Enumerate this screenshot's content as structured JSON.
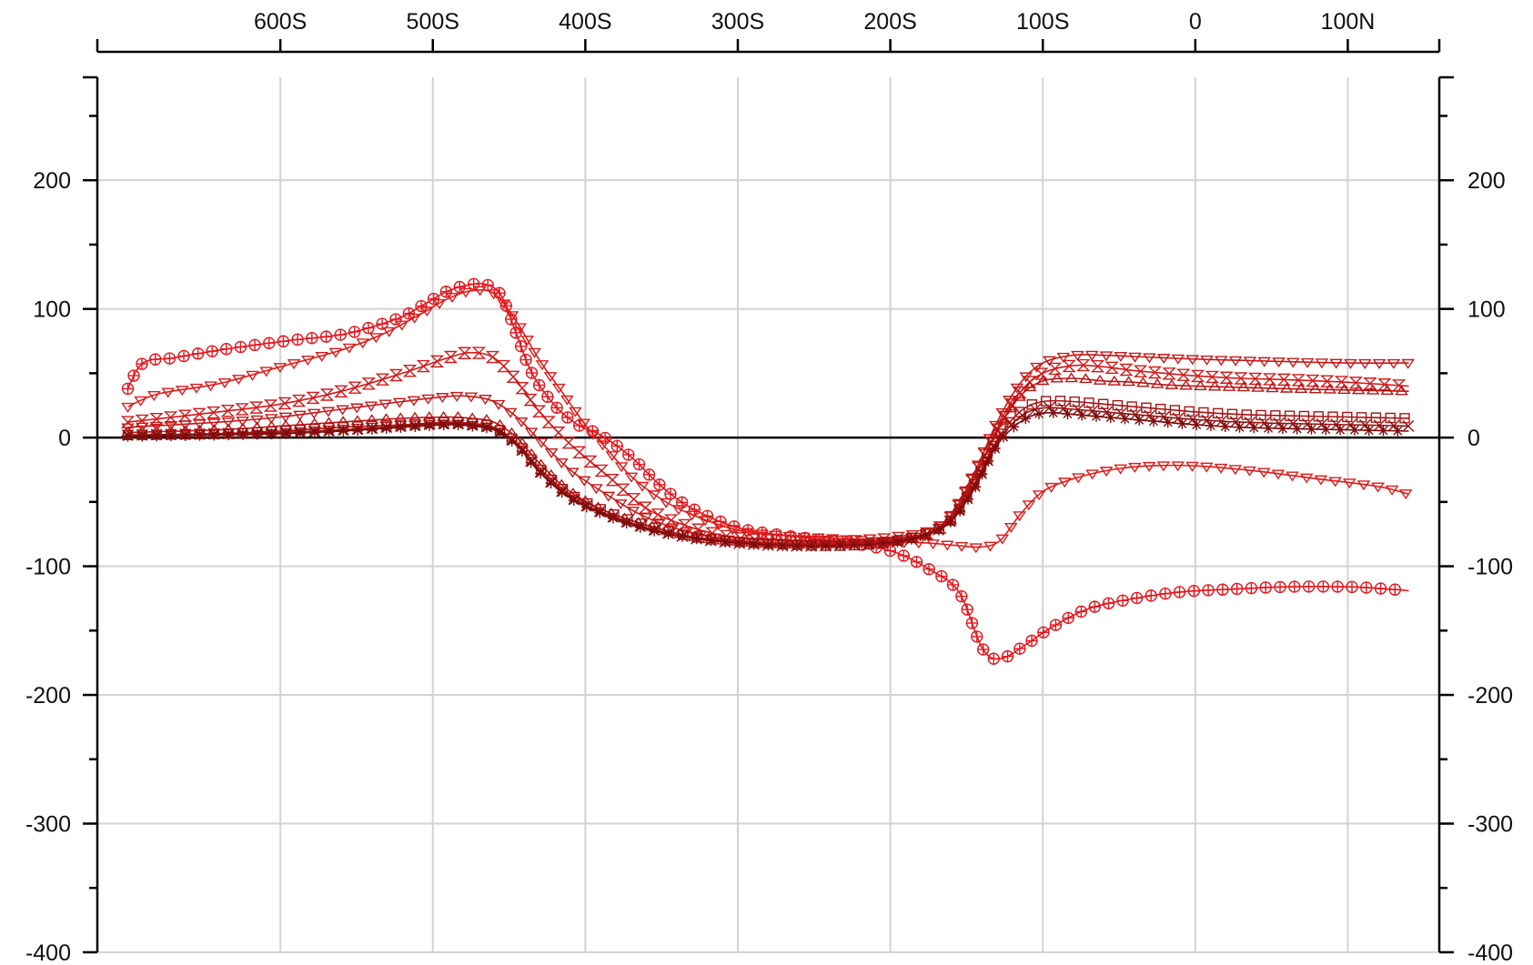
{
  "chart_data": {
    "type": "line",
    "title": "",
    "xlabel": "",
    "ylabel": "",
    "xlim": [
      720,
      -160
    ],
    "ylim": [
      -400,
      280
    ],
    "grid": true,
    "reference_line_y": 0,
    "x_ticks": [
      {
        "value": 600,
        "label": "600S"
      },
      {
        "value": 500,
        "label": "500S"
      },
      {
        "value": 400,
        "label": "400S"
      },
      {
        "value": 300,
        "label": "300S"
      },
      {
        "value": 200,
        "label": "200S"
      },
      {
        "value": 100,
        "label": "100S"
      },
      {
        "value": 0,
        "label": "0"
      },
      {
        "value": -100,
        "label": "100N"
      }
    ],
    "y_ticks": [
      {
        "value": 200,
        "label": "200"
      },
      {
        "value": 100,
        "label": "100"
      },
      {
        "value": 0,
        "label": "0"
      },
      {
        "value": -100,
        "label": "-100"
      },
      {
        "value": -200,
        "label": "-200"
      },
      {
        "value": -300,
        "label": "-300"
      },
      {
        "value": -400,
        "label": "-400"
      }
    ],
    "series": [
      {
        "color": "#e8141c",
        "marker": "circle-plus",
        "x": [
          700,
          690,
          670,
          640,
          610,
          590,
          560,
          540,
          520,
          505,
          490,
          475,
          465,
          455,
          445,
          435,
          420,
          405,
          390,
          370,
          350,
          330,
          300,
          270,
          240,
          215,
          195,
          175,
          155,
          140,
          128,
          110,
          95,
          70,
          40,
          10,
          -20,
          -60,
          -100,
          -130,
          -140
        ],
        "y": [
          38,
          58,
          62,
          68,
          73,
          76,
          80,
          86,
          94,
          104,
          114,
          119,
          119,
          110,
          80,
          50,
          25,
          10,
          2,
          -15,
          -38,
          -55,
          -70,
          -76,
          -80,
          -84,
          -90,
          -102,
          -120,
          -163,
          -172,
          -160,
          -148,
          -133,
          -125,
          -120,
          -118,
          -116,
          -116,
          -118,
          -119
        ]
      },
      {
        "color": "#e01a1a",
        "marker": "triangle-down",
        "x": [
          700,
          680,
          640,
          600,
          560,
          530,
          505,
          490,
          475,
          460,
          445,
          430,
          415,
          400,
          385,
          370,
          350,
          330,
          300,
          270,
          240,
          215,
          195,
          175,
          155,
          140,
          128,
          115,
          100,
          80,
          55,
          30,
          0,
          -40,
          -80,
          -120,
          -140
        ],
        "y": [
          24,
          34,
          42,
          55,
          68,
          82,
          98,
          108,
          114,
          112,
          90,
          60,
          35,
          10,
          -10,
          -30,
          -48,
          -60,
          -72,
          -76,
          -78,
          -80,
          -81,
          -82,
          -84,
          -85,
          -80,
          -60,
          -42,
          -32,
          -25,
          -22,
          -22,
          -26,
          -32,
          -38,
          -44
        ]
      },
      {
        "color": "#d41a1a",
        "marker": "hourglass",
        "x": [
          700,
          640,
          600,
          560,
          520,
          490,
          475,
          460,
          445,
          430,
          410,
          385,
          360,
          330,
          300,
          270,
          240,
          215,
          195,
          175,
          160,
          145,
          130,
          115,
          100,
          80,
          60,
          40,
          20,
          0,
          -30,
          -60,
          -100,
          -140
        ],
        "y": [
          12,
          20,
          26,
          36,
          50,
          62,
          66,
          62,
          44,
          20,
          -5,
          -30,
          -55,
          -70,
          -78,
          -80,
          -81,
          -80,
          -78,
          -74,
          -62,
          -30,
          5,
          35,
          50,
          56,
          55,
          52,
          50,
          48,
          46,
          45,
          43,
          40
        ]
      },
      {
        "color": "#c81818",
        "marker": "triangle-down",
        "x": [
          700,
          640,
          600,
          560,
          520,
          490,
          475,
          460,
          445,
          430,
          410,
          385,
          360,
          330,
          300,
          270,
          240,
          215,
          195,
          175,
          160,
          145,
          130,
          115,
          100,
          80,
          60,
          40,
          20,
          0,
          -30,
          -60,
          -100,
          -140
        ],
        "y": [
          8,
          12,
          16,
          22,
          28,
          32,
          32,
          28,
          16,
          -2,
          -25,
          -45,
          -62,
          -74,
          -80,
          -82,
          -82,
          -81,
          -79,
          -74,
          -60,
          -28,
          12,
          42,
          58,
          64,
          64,
          63,
          62,
          61,
          60,
          59,
          58,
          58
        ]
      },
      {
        "color": "#bb1414",
        "marker": "triangle-up",
        "x": [
          700,
          640,
          600,
          560,
          520,
          490,
          475,
          460,
          445,
          430,
          410,
          385,
          360,
          330,
          300,
          270,
          240,
          215,
          195,
          175,
          160,
          145,
          130,
          115,
          100,
          80,
          60,
          40,
          20,
          0,
          -30,
          -60,
          -100,
          -140
        ],
        "y": [
          4,
          6,
          9,
          12,
          15,
          16,
          15,
          12,
          0,
          -20,
          -42,
          -58,
          -68,
          -77,
          -81,
          -83,
          -83,
          -82,
          -80,
          -74,
          -62,
          -32,
          5,
          32,
          44,
          46,
          44,
          43,
          41,
          40,
          39,
          38,
          37,
          36
        ]
      },
      {
        "color": "#a81212",
        "marker": "square",
        "x": [
          700,
          640,
          600,
          560,
          520,
          490,
          475,
          460,
          445,
          430,
          410,
          385,
          360,
          330,
          300,
          270,
          240,
          215,
          195,
          175,
          160,
          145,
          130,
          115,
          100,
          80,
          60,
          40,
          20,
          0,
          -30,
          -60,
          -100,
          -140
        ],
        "y": [
          2,
          3,
          5,
          8,
          10,
          12,
          11,
          8,
          -4,
          -24,
          -44,
          -58,
          -68,
          -77,
          -81,
          -83,
          -84,
          -83,
          -80,
          -74,
          -64,
          -36,
          -2,
          20,
          28,
          28,
          26,
          24,
          22,
          20,
          18,
          17,
          16,
          15
        ]
      },
      {
        "color": "#941010",
        "marker": "cross",
        "x": [
          700,
          640,
          600,
          560,
          520,
          490,
          475,
          460,
          445,
          430,
          410,
          385,
          360,
          330,
          300,
          270,
          240,
          215,
          195,
          175,
          160,
          145,
          130,
          115,
          100,
          80,
          60,
          40,
          20,
          0,
          -30,
          -60,
          -100,
          -140
        ],
        "y": [
          2,
          3,
          4,
          6,
          9,
          11,
          10,
          7,
          -5,
          -26,
          -46,
          -60,
          -70,
          -78,
          -82,
          -84,
          -84,
          -83,
          -81,
          -75,
          -64,
          -38,
          -4,
          16,
          23,
          22,
          20,
          18,
          16,
          14,
          12,
          11,
          10,
          9
        ]
      },
      {
        "color": "#7e0d0d",
        "marker": "asterisk",
        "x": [
          700,
          640,
          600,
          560,
          520,
          490,
          475,
          460,
          445,
          430,
          410,
          385,
          360,
          330,
          300,
          270,
          240,
          215,
          195,
          175,
          160,
          145,
          130,
          115,
          100,
          80,
          60,
          40,
          20,
          0,
          -30,
          -60,
          -100,
          -140
        ],
        "y": [
          1,
          2,
          3,
          5,
          8,
          10,
          9,
          6,
          -6,
          -27,
          -47,
          -61,
          -71,
          -78,
          -82,
          -84,
          -84,
          -83,
          -81,
          -75,
          -65,
          -40,
          -6,
          12,
          19,
          18,
          16,
          14,
          12,
          10,
          8,
          7,
          6,
          5
        ]
      }
    ]
  }
}
